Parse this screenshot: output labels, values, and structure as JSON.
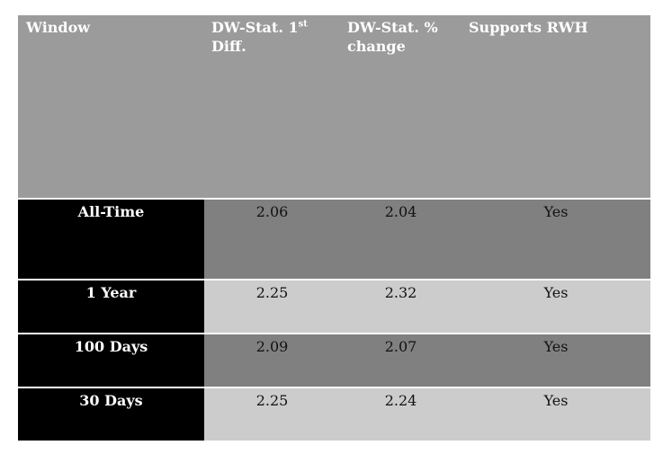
{
  "table": {
    "headers": {
      "window": "Window",
      "dw_first_diff_main": "DW-Stat. 1",
      "dw_first_diff_sup": "st",
      "dw_first_diff_tail": "Diff.",
      "dw_pct_change_line1": "DW-Stat. %",
      "dw_pct_change_line2": "change",
      "supports_rwh": "Supports RWH"
    },
    "rows": [
      {
        "window": "All-Time",
        "dw_first_diff": "2.06",
        "dw_pct_change": "2.04",
        "supports_rwh": "Yes"
      },
      {
        "window": "1 Year",
        "dw_first_diff": "2.25",
        "dw_pct_change": "2.32",
        "supports_rwh": "Yes"
      },
      {
        "window": "100 Days",
        "dw_first_diff": "2.09",
        "dw_pct_change": "2.07",
        "supports_rwh": "Yes"
      },
      {
        "window": "30 Days",
        "dw_first_diff": "2.25",
        "dw_pct_change": "2.24",
        "supports_rwh": "Yes"
      }
    ]
  },
  "colors": {
    "header_bg": "#9b9b9b",
    "row_label_bg": "#000000",
    "row_dark_bg": "#808080",
    "row_light_bg": "#cccccc"
  }
}
